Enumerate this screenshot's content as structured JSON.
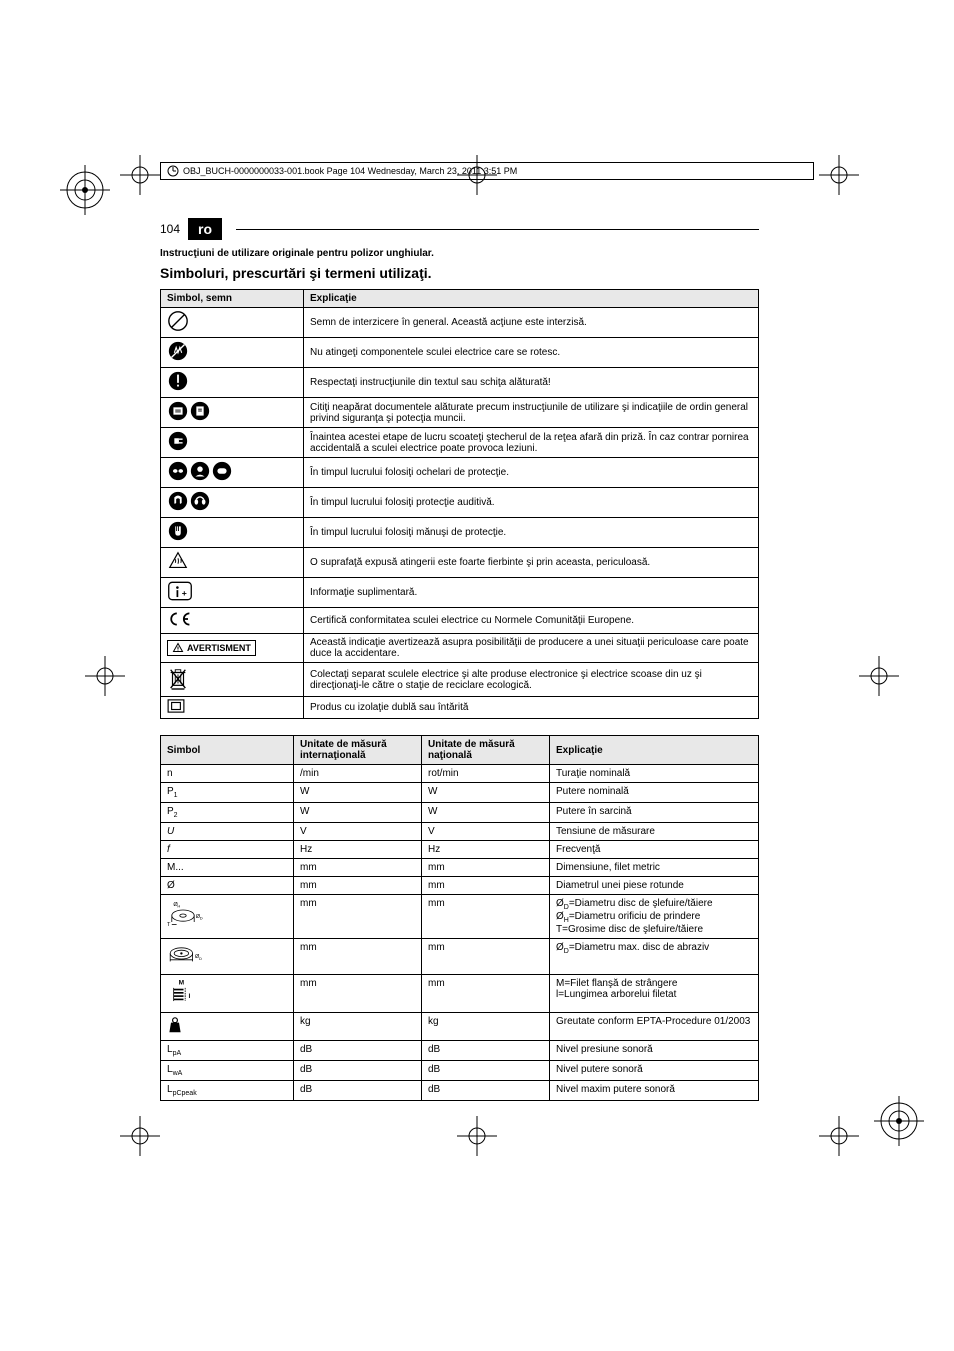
{
  "header_bar": "OBJ_BUCH-0000000033-001.book  Page 104  Wednesday, March 23, 2011  3:51 PM",
  "page_number": "104",
  "lang_code": "ro",
  "subtitle": "Instrucţiuni de utilizare originale pentru polizor unghiular.",
  "title": "Simboluri, prescurtări şi termeni utilizaţi.",
  "table1": {
    "headers": [
      "Simbol, semn",
      "Explicaţie"
    ],
    "rows": [
      {
        "icon": "prohibit",
        "text": "Semn de interzicere în general. Această acţiune este interzisă."
      },
      {
        "icon": "no-touch",
        "text": "Nu atingeţi componentele sculei electrice care se rotesc."
      },
      {
        "icon": "exclaim",
        "text": "Respectaţi instrucţiunile din textul sau schiţa alăturată!"
      },
      {
        "icon": "read-docs",
        "text": "Citiţi neapărat documentele alăturate precum instrucţiunile de utilizare şi indicaţiile de ordin general privind siguranţa şi potecţia muncii."
      },
      {
        "icon": "unplug",
        "text": "Înaintea acestei etape de lucru scoateţi ştecherul de la reţea afară din priză. În caz contrar pornirea accidentală a sculei electrice poate provoca leziuni."
      },
      {
        "icon": "goggles",
        "text": "În timpul lucrului folosiţi ochelari de protecţie."
      },
      {
        "icon": "earprot",
        "text": "În timpul lucrului folosiţi protecţie auditivă."
      },
      {
        "icon": "gloves",
        "text": "În timpul lucrului folosiţi mănuşi de protecţie."
      },
      {
        "icon": "hot",
        "text": "O suprafaţă expusă atingerii este foarte fierbinte şi prin aceasta, periculoasă."
      },
      {
        "icon": "info",
        "text": "Informaţie suplimentară."
      },
      {
        "icon": "ce",
        "text": "Certifică conformitatea sculei electrice cu Normele Comunităţii Europene."
      },
      {
        "icon": "warn-badge",
        "badge_text": "AVERTISMENT",
        "text": "Această indicaţie avertizează asupra posibilităţii de producere a unei situaţii periculoase care poate duce la accidentare."
      },
      {
        "icon": "weee",
        "text": "Colectaţi separat sculele electrice şi alte produse electronice şi electrice scoase din uz şi direcţionaţi-le către o staţie de reciclare ecologică."
      },
      {
        "icon": "dblins",
        "text": "Produs cu izolaţie dublă sau întărită"
      }
    ]
  },
  "table2": {
    "headers": [
      "Simbol",
      "Unitate de măsură internaţională",
      "Unitate de măsură naţională",
      "Explicaţie"
    ],
    "rows": [
      {
        "sym": "n",
        "intl": "/min",
        "nat": "rot/min",
        "exp": "Turaţie nominală"
      },
      {
        "sym": "P1",
        "sub": "1",
        "pre": "P",
        "intl": "W",
        "nat": "W",
        "exp": "Putere nominală"
      },
      {
        "sym": "P2",
        "sub": "2",
        "pre": "P",
        "intl": "W",
        "nat": "W",
        "exp": "Putere în sarcină"
      },
      {
        "sym": "U",
        "ital": true,
        "intl": "V",
        "nat": "V",
        "exp": "Tensiune de măsurare"
      },
      {
        "sym": "f",
        "ital": true,
        "intl": "Hz",
        "nat": "Hz",
        "exp": "Frecvenţă"
      },
      {
        "sym": "M...",
        "intl": "mm",
        "nat": "mm",
        "exp": "Dimensiune, filet metric"
      },
      {
        "sym": "Ø",
        "intl": "mm",
        "nat": "mm",
        "exp": "Diametrul unei piese rotunde"
      },
      {
        "sym": "disc-dia",
        "icon": true,
        "intl": "mm",
        "nat": "mm",
        "exp": "ØD=Diametru disc de şlefuire/tăiere\nØH=Diametru orificiu de prindere\nT=Grosime disc de şlefuire/tăiere"
      },
      {
        "sym": "disc-max",
        "icon": true,
        "intl": "mm",
        "nat": "mm",
        "exp": "ØD=Diametru max. disc de abraziv"
      },
      {
        "sym": "thread",
        "icon": true,
        "intl": "mm",
        "nat": "mm",
        "exp": "M=Filet flanşă de strângere\nl=Lungimea arborelui filetat"
      },
      {
        "sym": "weight",
        "icon": true,
        "intl": "kg",
        "nat": "kg",
        "exp": "Greutate conform EPTA-Procedure 01/2003"
      },
      {
        "sym": "LpA",
        "pre": "L",
        "sub": "pA",
        "intl": "dB",
        "nat": "dB",
        "exp": "Nivel presiune sonoră"
      },
      {
        "sym": "LwA",
        "pre": "L",
        "sub": "wA",
        "intl": "dB",
        "nat": "dB",
        "exp": "Nivel putere sonoră"
      },
      {
        "sym": "LpCpeak",
        "pre": "L",
        "sub": "pCpeak",
        "intl": "dB",
        "nat": "dB",
        "exp": "Nivel maxim putere sonoră"
      }
    ]
  }
}
